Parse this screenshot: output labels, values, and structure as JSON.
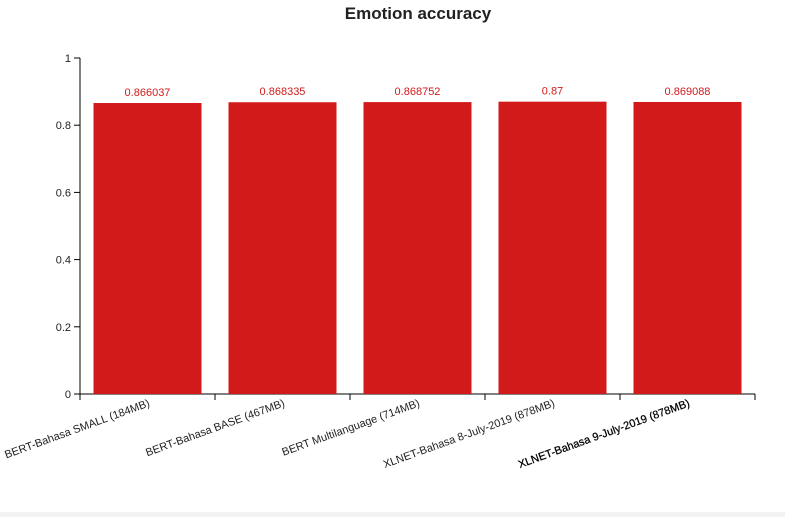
{
  "chart_data": {
    "type": "bar",
    "title": "Emotion accuracy",
    "xlabel": "",
    "ylabel": "",
    "categories": [
      "BERT-Bahasa SMALL (184MB)",
      "BERT-Bahasa BASE (467MB)",
      "BERT Multilanguage (714MB)",
      "XLNET-Bahasa 8-July-2019 (878MB)",
      "XLNET-Bahasa 9-July-2019 (878MB)"
    ],
    "values": [
      0.866037,
      0.868335,
      0.868752,
      0.87,
      0.869088
    ],
    "data_labels": [
      "0.866037",
      "0.868335",
      "0.868752",
      "0.87",
      "0.869088"
    ],
    "ylim": [
      0,
      1
    ],
    "yticks": [
      "0",
      "0.2",
      "0.4",
      "0.6",
      "0.8",
      "1"
    ],
    "grid": false,
    "bar_color": "#d31a1a",
    "label_color": "#d31a1a",
    "axis_color": "#000000"
  }
}
